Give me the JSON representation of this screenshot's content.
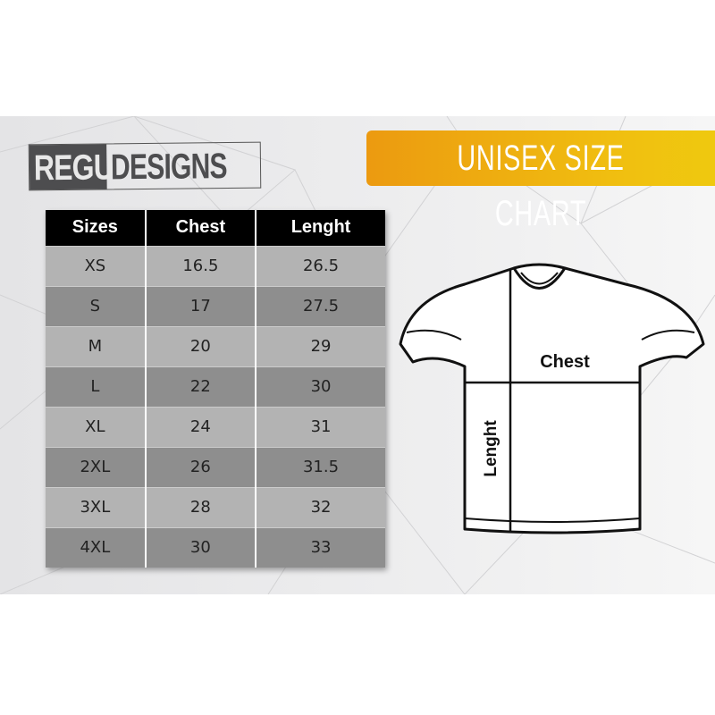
{
  "logo": {
    "part1": "REGU",
    "part2": "DESIGNS"
  },
  "banner": {
    "title": "UNISEX SIZE CHART",
    "color_start": "#ec9a10",
    "color_end": "#efc90f"
  },
  "table": {
    "headers": [
      "Sizes",
      "Chest",
      "Lenght"
    ],
    "rows": [
      [
        "XS",
        "16.5",
        "26.5"
      ],
      [
        "S",
        "17",
        "27.5"
      ],
      [
        "M",
        "20",
        "29"
      ],
      [
        "L",
        "22",
        "30"
      ],
      [
        "XL",
        "24",
        "31"
      ],
      [
        "2XL",
        "26",
        "31.5"
      ],
      [
        "3XL",
        "28",
        "32"
      ],
      [
        "4XL",
        "30",
        "33"
      ]
    ]
  },
  "diagram": {
    "chest_label": "Chest",
    "length_label": "Lenght"
  }
}
